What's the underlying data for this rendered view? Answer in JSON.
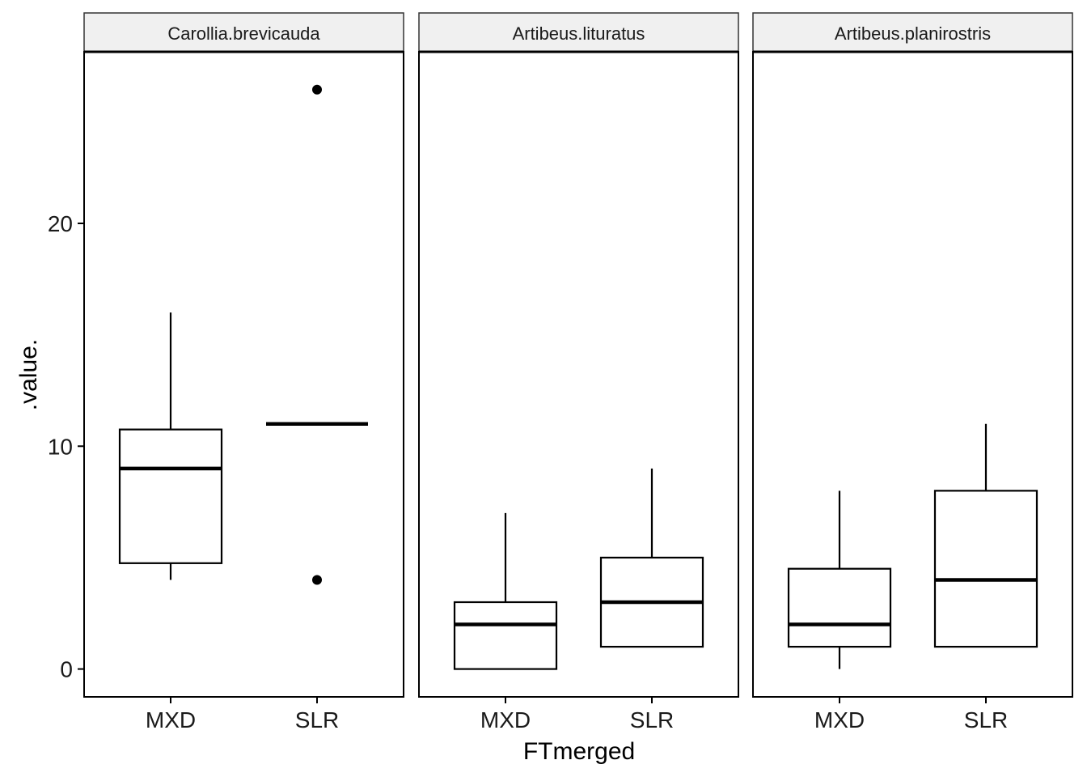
{
  "chart_data": {
    "type": "boxplot",
    "xlabel": "FTmerged",
    "ylabel": ".value.",
    "ylim": [
      -1.25,
      27.7
    ],
    "yticks": [
      0,
      10,
      20
    ],
    "categories": [
      "MXD",
      "SLR"
    ],
    "grid": false,
    "colors": {
      "box_fill": "#ffffff",
      "line": "#000000",
      "strip_fill": "#f0f0f0"
    },
    "facets": [
      {
        "name": "Carollia.brevicauda",
        "boxes": [
          {
            "category": "MXD",
            "whisker_low": 4,
            "q1": 4.75,
            "median": 9,
            "q3": 10.75,
            "whisker_high": 16,
            "outliers": []
          },
          {
            "category": "SLR",
            "whisker_low": 11,
            "q1": 11,
            "median": 11,
            "q3": 11,
            "whisker_high": 11,
            "outliers": [
              26,
              4
            ]
          }
        ]
      },
      {
        "name": "Artibeus.lituratus",
        "boxes": [
          {
            "category": "MXD",
            "whisker_low": 0,
            "q1": 0,
            "median": 2,
            "q3": 3,
            "whisker_high": 7,
            "outliers": []
          },
          {
            "category": "SLR",
            "whisker_low": 1,
            "q1": 1,
            "median": 3,
            "q3": 5,
            "whisker_high": 9,
            "outliers": []
          }
        ]
      },
      {
        "name": "Artibeus.planirostris",
        "boxes": [
          {
            "category": "MXD",
            "whisker_low": 0,
            "q1": 1,
            "median": 2,
            "q3": 4.5,
            "whisker_high": 8,
            "outliers": []
          },
          {
            "category": "SLR",
            "whisker_low": 1,
            "q1": 1,
            "median": 4,
            "q3": 8,
            "whisker_high": 11,
            "outliers": []
          }
        ]
      }
    ]
  }
}
